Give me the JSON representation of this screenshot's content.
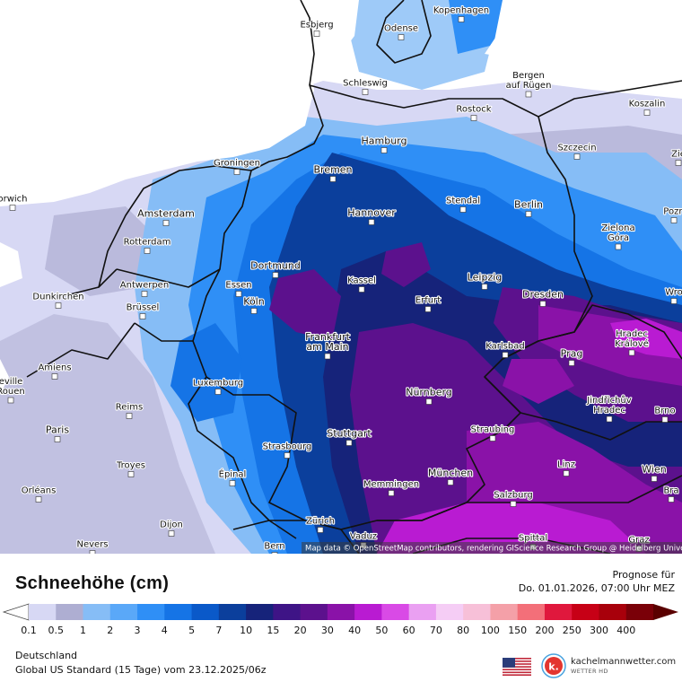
{
  "map": {
    "attribution": "Map data © OpenStreetMap contributors, rendering GIScience Research Group @ Heidelberg University",
    "cities": [
      {
        "name": "Kopenhagen",
        "lines": [
          "Kopenhagen"
        ]
      },
      {
        "name": "Esbjerg",
        "lines": [
          "Esbjerg"
        ]
      },
      {
        "name": "Odense",
        "lines": [
          "Odense"
        ]
      },
      {
        "name": "Schleswig",
        "lines": [
          "Schleswig"
        ]
      },
      {
        "name": "Bergen auf Rügen",
        "lines": [
          "Bergen",
          "auf Rügen"
        ]
      },
      {
        "name": "Rostock",
        "lines": [
          "Rostock"
        ]
      },
      {
        "name": "Koszalin",
        "lines": [
          "Koszalin"
        ]
      },
      {
        "name": "Hamburg",
        "lines": [
          "Hamburg"
        ]
      },
      {
        "name": "Szczecin",
        "lines": [
          "Szczecin"
        ]
      },
      {
        "name": "Zie",
        "lines": [
          "Zie"
        ]
      },
      {
        "name": "Groningen",
        "lines": [
          "Groningen"
        ]
      },
      {
        "name": "Bremen",
        "lines": [
          "Bremen"
        ]
      },
      {
        "name": "Norwich",
        "lines": [
          "orwich"
        ]
      },
      {
        "name": "Stendal",
        "lines": [
          "Stendal"
        ]
      },
      {
        "name": "Amsterdam",
        "lines": [
          "Amsterdam"
        ]
      },
      {
        "name": "Hannover",
        "lines": [
          "Hannover"
        ]
      },
      {
        "name": "Berlin",
        "lines": [
          "Berlin"
        ]
      },
      {
        "name": "Pozn",
        "lines": [
          "Pozn"
        ]
      },
      {
        "name": "Rotterdam",
        "lines": [
          "Rotterdam"
        ]
      },
      {
        "name": "Zielona Góra",
        "lines": [
          "Zielona",
          "Góra"
        ]
      },
      {
        "name": "Dortmund",
        "lines": [
          "Dortmund"
        ]
      },
      {
        "name": "Antwerpen",
        "lines": [
          "Antwerpen"
        ]
      },
      {
        "name": "Essen",
        "lines": [
          "Essen"
        ]
      },
      {
        "name": "Kassel",
        "lines": [
          "Kassel"
        ]
      },
      {
        "name": "Leipzig",
        "lines": [
          "Leipzig"
        ]
      },
      {
        "name": "Dunkirchen",
        "lines": [
          "Dunkirchen"
        ]
      },
      {
        "name": "Köln",
        "lines": [
          "Köln"
        ]
      },
      {
        "name": "Erfurt",
        "lines": [
          "Erfurt"
        ]
      },
      {
        "name": "Dresden",
        "lines": [
          "Dresden"
        ]
      },
      {
        "name": "Wro",
        "lines": [
          "Wro"
        ]
      },
      {
        "name": "Brüssel",
        "lines": [
          "Brüssel"
        ]
      },
      {
        "name": "Frankfurt am Main",
        "lines": [
          "Frankfurt",
          "am Main"
        ]
      },
      {
        "name": "Karlsbad",
        "lines": [
          "Karlsbad"
        ]
      },
      {
        "name": "Hradec Králové",
        "lines": [
          "Hradec",
          "Králové"
        ]
      },
      {
        "name": "Prag",
        "lines": [
          "Prag"
        ]
      },
      {
        "name": "Amiens",
        "lines": [
          "Amiens"
        ]
      },
      {
        "name": "Luxemburg",
        "lines": [
          "Luxemburg"
        ]
      },
      {
        "name": "Rouen",
        "lines": [
          "eville",
          "Rouen"
        ]
      },
      {
        "name": "Nürnberg",
        "lines": [
          "Nürnberg"
        ]
      },
      {
        "name": "Jindřichův Hradec",
        "lines": [
          "Jindřichův",
          "Hradec"
        ]
      },
      {
        "name": "Reims",
        "lines": [
          "Reims"
        ]
      },
      {
        "name": "Brno",
        "lines": [
          "Brno"
        ]
      },
      {
        "name": "Paris",
        "lines": [
          "Paris"
        ]
      },
      {
        "name": "Straubing",
        "lines": [
          "Straubing"
        ]
      },
      {
        "name": "Stuttgart",
        "lines": [
          "Stuttgart"
        ]
      },
      {
        "name": "Strasbourg",
        "lines": [
          "Strasbourg"
        ]
      },
      {
        "name": "Troyes",
        "lines": [
          "Troyes"
        ]
      },
      {
        "name": "Linz",
        "lines": [
          "Linz"
        ]
      },
      {
        "name": "Épinal",
        "lines": [
          "Épinal"
        ]
      },
      {
        "name": "München",
        "lines": [
          "München"
        ]
      },
      {
        "name": "Wien",
        "lines": [
          "Wien"
        ]
      },
      {
        "name": "Memmingen",
        "lines": [
          "Memmingen"
        ]
      },
      {
        "name": "Orléans",
        "lines": [
          "Orléans"
        ]
      },
      {
        "name": "Bratislava",
        "lines": [
          "Bra"
        ]
      },
      {
        "name": "Salzburg",
        "lines": [
          "Salzburg"
        ]
      },
      {
        "name": "Zürich",
        "lines": [
          "Zürich"
        ]
      },
      {
        "name": "Dijon",
        "lines": [
          "Dijon"
        ]
      },
      {
        "name": "Vaduz",
        "lines": [
          "Vaduz"
        ]
      },
      {
        "name": "Spittal",
        "lines": [
          "Spittal"
        ]
      },
      {
        "name": "Nevers",
        "lines": [
          "Nevers"
        ]
      },
      {
        "name": "Bern",
        "lines": [
          "Bern"
        ]
      },
      {
        "name": "Graz",
        "lines": [
          "Graz"
        ]
      }
    ]
  },
  "legend": {
    "title": "Schneehöhe (cm)",
    "forecast_label": "Prognose für",
    "forecast_time": "Do. 01.01.2026, 07:00 Uhr MEZ",
    "ticks": [
      "0.1",
      "0.5",
      "1",
      "2",
      "3",
      "4",
      "5",
      "7",
      "10",
      "15",
      "20",
      "30",
      "40",
      "50",
      "60",
      "70",
      "80",
      "100",
      "150",
      "200",
      "250",
      "300",
      "400"
    ],
    "colors": [
      "#d7d8f4",
      "#aeaed2",
      "#86bdf6",
      "#5aa8f8",
      "#2f8ff6",
      "#1574e6",
      "#0a59c9",
      "#0b3f9c",
      "#16237a",
      "#3e1486",
      "#5c118d",
      "#8a12a8",
      "#b91bd2",
      "#d94ae6",
      "#eaa0f2",
      "#f5cdf5",
      "#f7c0d8",
      "#f4a0a8",
      "#f36f79",
      "#e0183d",
      "#c70016",
      "#a8000b",
      "#7a0008",
      "#5a0000"
    ]
  },
  "footer": {
    "region": "Deutschland",
    "model": "Global US Standard (15 Tage) vom  23.12.2025/06z",
    "brand_name": "kachelmannwetter.com",
    "brand_sub": "WETTER HD",
    "brand_icon_letter": "k.",
    "flag_icon": "us-flag-icon"
  }
}
